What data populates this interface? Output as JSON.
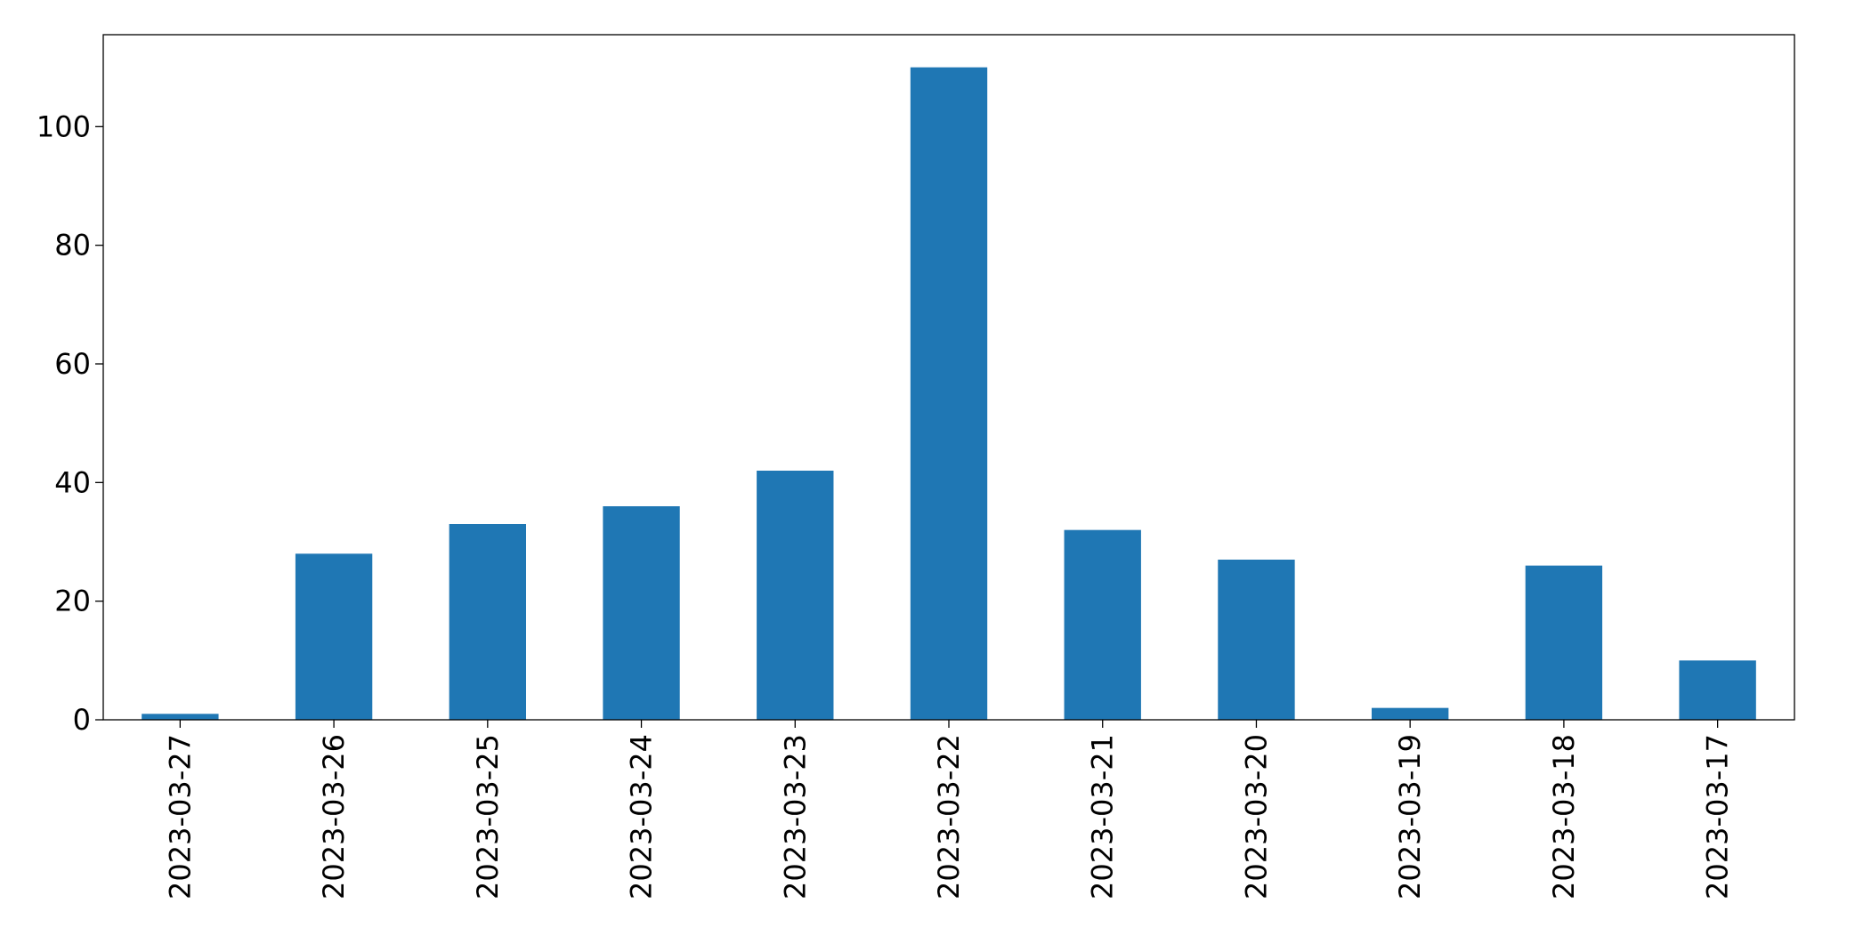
{
  "chart_data": {
    "type": "bar",
    "categories": [
      "2023-03-27",
      "2023-03-26",
      "2023-03-25",
      "2023-03-24",
      "2023-03-23",
      "2023-03-22",
      "2023-03-21",
      "2023-03-20",
      "2023-03-19",
      "2023-03-18",
      "2023-03-17"
    ],
    "values": [
      1,
      28,
      33,
      36,
      42,
      110,
      32,
      27,
      2,
      26,
      10
    ],
    "color": "#1f77b4",
    "ylim": [
      0,
      115.5
    ],
    "yticks": [
      0,
      20,
      40,
      60,
      80,
      100
    ],
    "grid": false
  }
}
